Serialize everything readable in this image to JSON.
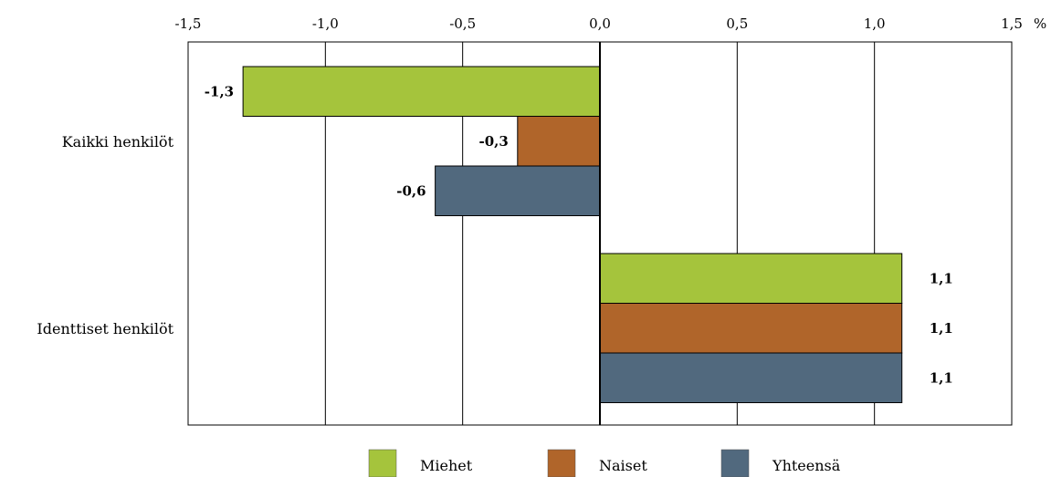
{
  "chart_data": {
    "type": "bar",
    "orientation": "horizontal",
    "unit": "%",
    "xlim": [
      -1.5,
      1.5
    ],
    "x_ticks": [
      -1.5,
      -1.0,
      -0.5,
      0.0,
      0.5,
      1.0,
      1.5
    ],
    "x_tick_labels": [
      "-1,5",
      "-1,0",
      "-0,5",
      "0,0",
      "0,5",
      "1,0",
      "1,5"
    ],
    "x_axis_position": "top",
    "grid": true,
    "categories": [
      "Kaikki henkilöt",
      "Identtiset henkilöt"
    ],
    "series": [
      {
        "name": "Miehet",
        "color": "#a5c43c",
        "values": [
          -1.3,
          1.1
        ],
        "labels": [
          "-1,3",
          "1,1"
        ]
      },
      {
        "name": "Naiset",
        "color": "#b0652a",
        "values": [
          -0.3,
          1.1
        ],
        "labels": [
          "-0,3",
          "1,1"
        ]
      },
      {
        "name": "Yhteensä",
        "color": "#51697e",
        "values": [
          -0.6,
          1.1
        ],
        "labels": [
          "-0,6",
          "1,1"
        ]
      }
    ],
    "legend_position": "bottom"
  }
}
